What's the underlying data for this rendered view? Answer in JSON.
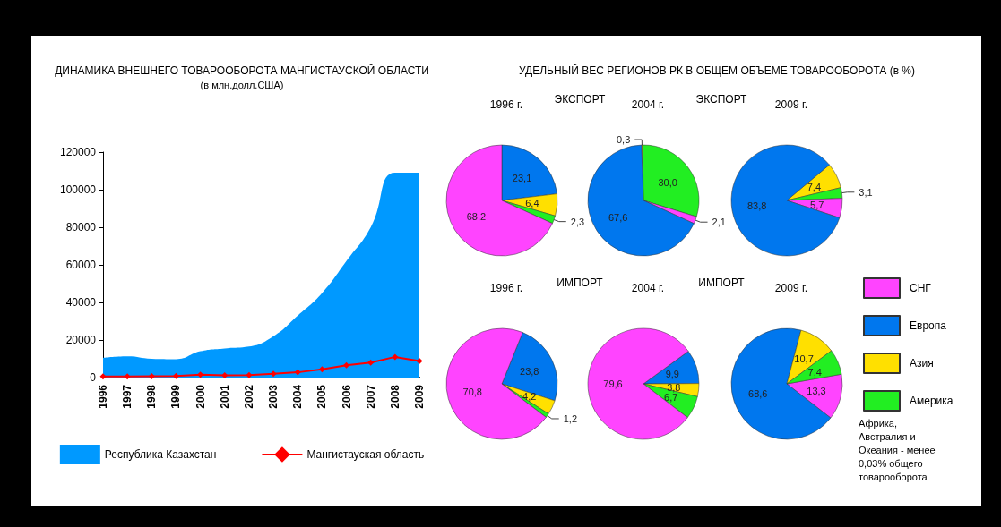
{
  "chart_data": [
    {
      "type": "area",
      "title": "ДИНАМИКА ВНЕШНЕГО ТОВАРООБОРОТА МАНГИСТАУСКОЙ ОБЛАСТИ",
      "subtitle": "(в млн.долл.США)",
      "categories": [
        "1996",
        "1997",
        "1998",
        "1999",
        "2000",
        "2001",
        "2002",
        "2003",
        "2004",
        "2005",
        "2006",
        "2007",
        "2008",
        "2009"
      ],
      "series": [
        {
          "name": "Республика Казахстан",
          "type": "area",
          "color": "#0099ff",
          "values": [
            10500,
            11300,
            10000,
            9800,
            14000,
            15500,
            16500,
            22000,
            33000,
            45000,
            62000,
            80000,
            109000,
            109000
          ]
        },
        {
          "name": "Мангистауская область",
          "type": "line",
          "color": "#ff0000",
          "marker": "diamond",
          "values": [
            600,
            600,
            700,
            800,
            1500,
            1200,
            1300,
            2000,
            2800,
            4400,
            6500,
            8000,
            11000,
            8800
          ]
        }
      ],
      "ylim": [
        0,
        120000
      ],
      "yticks": [
        0,
        20000,
        40000,
        60000,
        80000,
        100000,
        120000
      ],
      "grid": false,
      "legend": "bottom"
    },
    {
      "type": "other",
      "title": "УДЕЛЬНЫЙ ВЕС РЕГИОНОВ РК В ОБЩЕМ ОБЪЕМЕ ТОВАРООБОРОТА (в %)"
    },
    {
      "type": "pie",
      "title": "1996 г.",
      "subtitle": "ЭКСПОРТ",
      "categories": [
        null,
        null,
        null,
        null
      ],
      "values": [
        23.1,
        6.4,
        2.3,
        68.2
      ],
      "value_labels": [
        "23,1",
        "6,4",
        "2,3",
        "68,2"
      ],
      "colors": [
        "#0077ee",
        "#ffe000",
        "#22ee22",
        "#ff44ff"
      ]
    },
    {
      "type": "pie",
      "title": "2004 г.",
      "subtitle": "ЭКСПОРТ",
      "categories": [
        null,
        null,
        null,
        null
      ],
      "values": [
        0.3,
        30.0,
        2.1,
        67.6
      ],
      "value_labels": [
        "0,3",
        "30,0",
        "2,1",
        "67,6"
      ],
      "colors": [
        "#ffe000",
        "#22ee22",
        "#ff44ff",
        "#0077ee"
      ]
    },
    {
      "type": "pie",
      "title": "2009 г.",
      "categories": [
        null,
        null,
        null,
        null
      ],
      "values": [
        7.4,
        3.1,
        5.7,
        83.8
      ],
      "value_labels": [
        "7,4",
        "3,1",
        "5,7",
        "83,8"
      ],
      "colors": [
        "#ffe000",
        "#22ee22",
        "#ff44ff",
        "#0077ee"
      ]
    },
    {
      "type": "pie",
      "title": "1996 г.",
      "subtitle": "ИМПОРТ",
      "categories": [
        null,
        null,
        null,
        null
      ],
      "values": [
        23.8,
        4.2,
        1.2,
        70.8
      ],
      "value_labels": [
        "23,8",
        "4,2",
        "1,2",
        "70,8"
      ],
      "colors": [
        "#0077ee",
        "#ffe000",
        "#22ee22",
        "#ff44ff"
      ]
    },
    {
      "type": "pie",
      "title": "2004 г.",
      "subtitle": "ИМПОРТ",
      "categories": [
        null,
        null,
        null,
        null
      ],
      "values": [
        9.9,
        3.8,
        6.7,
        79.6
      ],
      "value_labels": [
        "9,9",
        "3,8",
        "6,7",
        "79,6"
      ],
      "colors": [
        "#0077ee",
        "#ffe000",
        "#22ee22",
        "#ff44ff"
      ]
    },
    {
      "type": "pie",
      "title": "2009 г.",
      "categories": [
        "СНГ",
        "Европа",
        "Азия",
        "Америка"
      ],
      "values": [
        13.3,
        68.6,
        10.7,
        7.4
      ],
      "value_labels": [
        "13,3",
        "68,6",
        "10,7",
        "7,4"
      ],
      "colors": [
        "#ff44ff",
        "#0077ee",
        "#ffe000",
        "#22ee22"
      ],
      "legend": "right",
      "annotations": [
        "Африка, Австралия и Океания - менее 0,03% общего товарооборота"
      ]
    }
  ]
}
